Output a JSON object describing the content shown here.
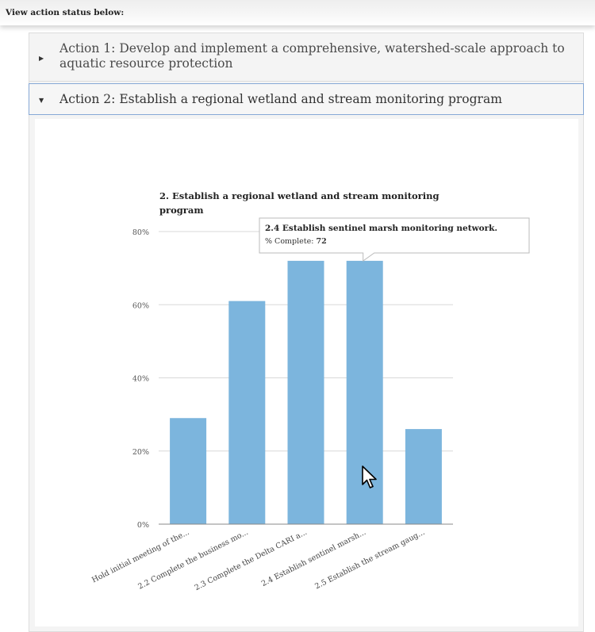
{
  "header": {
    "instruction": "View action status below:"
  },
  "accordion": {
    "items": [
      {
        "label": "Action 1: Develop and implement a comprehensive, watershed-scale approach to aquatic resource protection",
        "expanded": false
      },
      {
        "label": "Action 2: Establish a regional wetland and stream monitoring program",
        "expanded": true
      }
    ]
  },
  "chart_data": {
    "type": "bar",
    "title_line1": "2. Establish a regional wetland and stream monitoring",
    "title_line2": "program",
    "categories": [
      "Hold initial meeting of the...",
      "2.2 Complete the business mo...",
      "2.3 Complete the Delta CARI a...",
      "2.4 Establish sentinel marsh...",
      "2.5 Establish the stream gaug..."
    ],
    "values": [
      29,
      61,
      72,
      72,
      26
    ],
    "ylim": [
      0,
      80
    ],
    "yticks": [
      "0%",
      "20%",
      "40%",
      "60%",
      "80%"
    ],
    "ytick_values": [
      0,
      20,
      40,
      60,
      80
    ],
    "bar_color": "#7cb5dd",
    "grid": true,
    "tooltip": {
      "category_index": 3,
      "title": "2.4 Establish sentinel marsh monitoring network.",
      "label": "% Complete: ",
      "value": "72"
    }
  }
}
